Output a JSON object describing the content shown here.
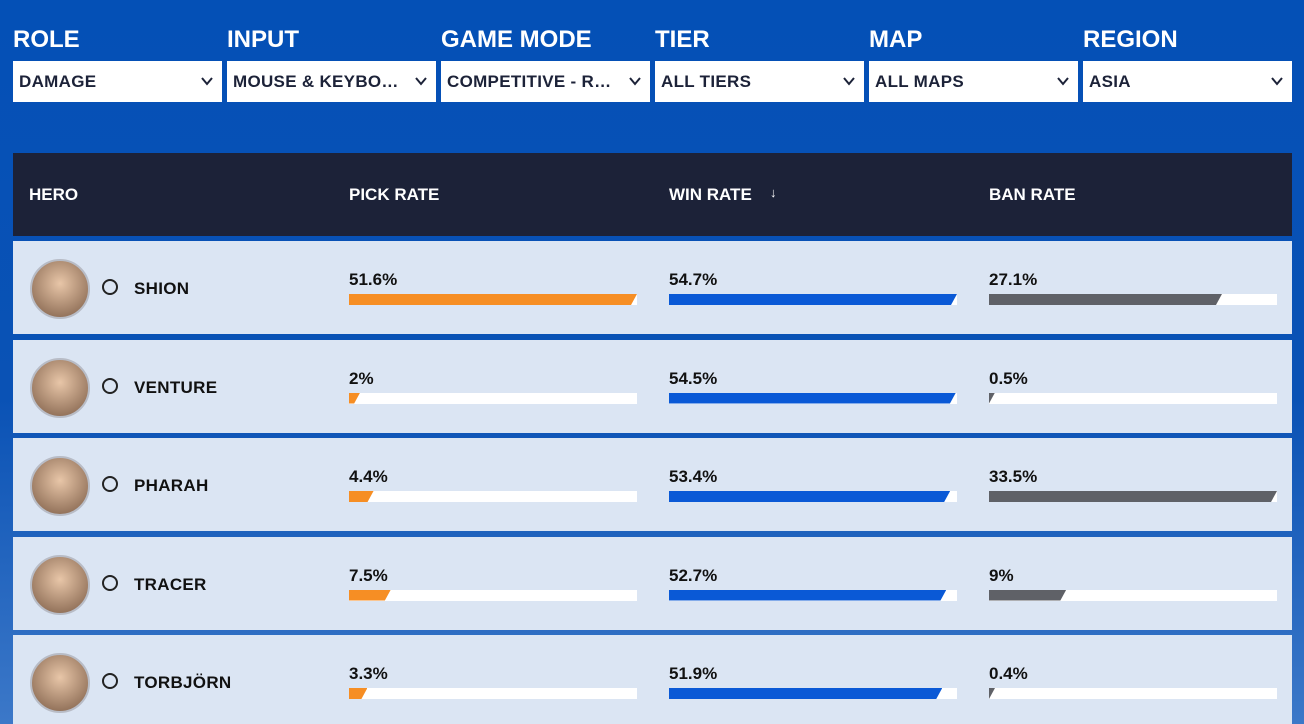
{
  "filters": [
    {
      "label": "ROLE",
      "value": "DAMAGE"
    },
    {
      "label": "INPUT",
      "value": "MOUSE & KEYBOARD"
    },
    {
      "label": "GAME MODE",
      "value": "COMPETITIVE - ROLE QUEUE"
    },
    {
      "label": "TIER",
      "value": "ALL TIERS"
    },
    {
      "label": "MAP",
      "value": "ALL MAPS"
    },
    {
      "label": "REGION",
      "value": "ASIA"
    }
  ],
  "table": {
    "headers": [
      "HERO",
      "PICK RATE",
      "WIN RATE",
      "BAN RATE"
    ],
    "rows": [
      {
        "hero": "SHION",
        "pick_rate": {
          "value": 51.6,
          "label": "51.6%"
        },
        "win_rate": {
          "value": 54.7,
          "label": "54.7%"
        },
        "ban_rate": {
          "value": 27.1,
          "label": "27.1%"
        }
      },
      {
        "hero": "VENTURE",
        "pick_rate": {
          "value": 2,
          "label": "2%"
        },
        "win_rate": {
          "value": 54.5,
          "label": "54.5%"
        },
        "ban_rate": {
          "value": 0.5,
          "label": "0.5%"
        }
      },
      {
        "hero": "PHARAH",
        "pick_rate": {
          "value": 4.4,
          "label": "4.4%"
        },
        "win_rate": {
          "value": 53.4,
          "label": "53.4%"
        },
        "ban_rate": {
          "value": 33.5,
          "label": "33.5%"
        }
      },
      {
        "hero": "TRACER",
        "pick_rate": {
          "value": 7.5,
          "label": "7.5%"
        },
        "win_rate": {
          "value": 52.7,
          "label": "52.7%"
        },
        "ban_rate": {
          "value": 9,
          "label": "9%"
        }
      },
      {
        "hero": "TORBJÖRN",
        "pick_rate": {
          "value": 3.3,
          "label": "3.3%"
        },
        "win_rate": {
          "value": 51.9,
          "label": "51.9%"
        },
        "ban_rate": {
          "value": 0.4,
          "label": "0.4%"
        }
      }
    ]
  }
}
